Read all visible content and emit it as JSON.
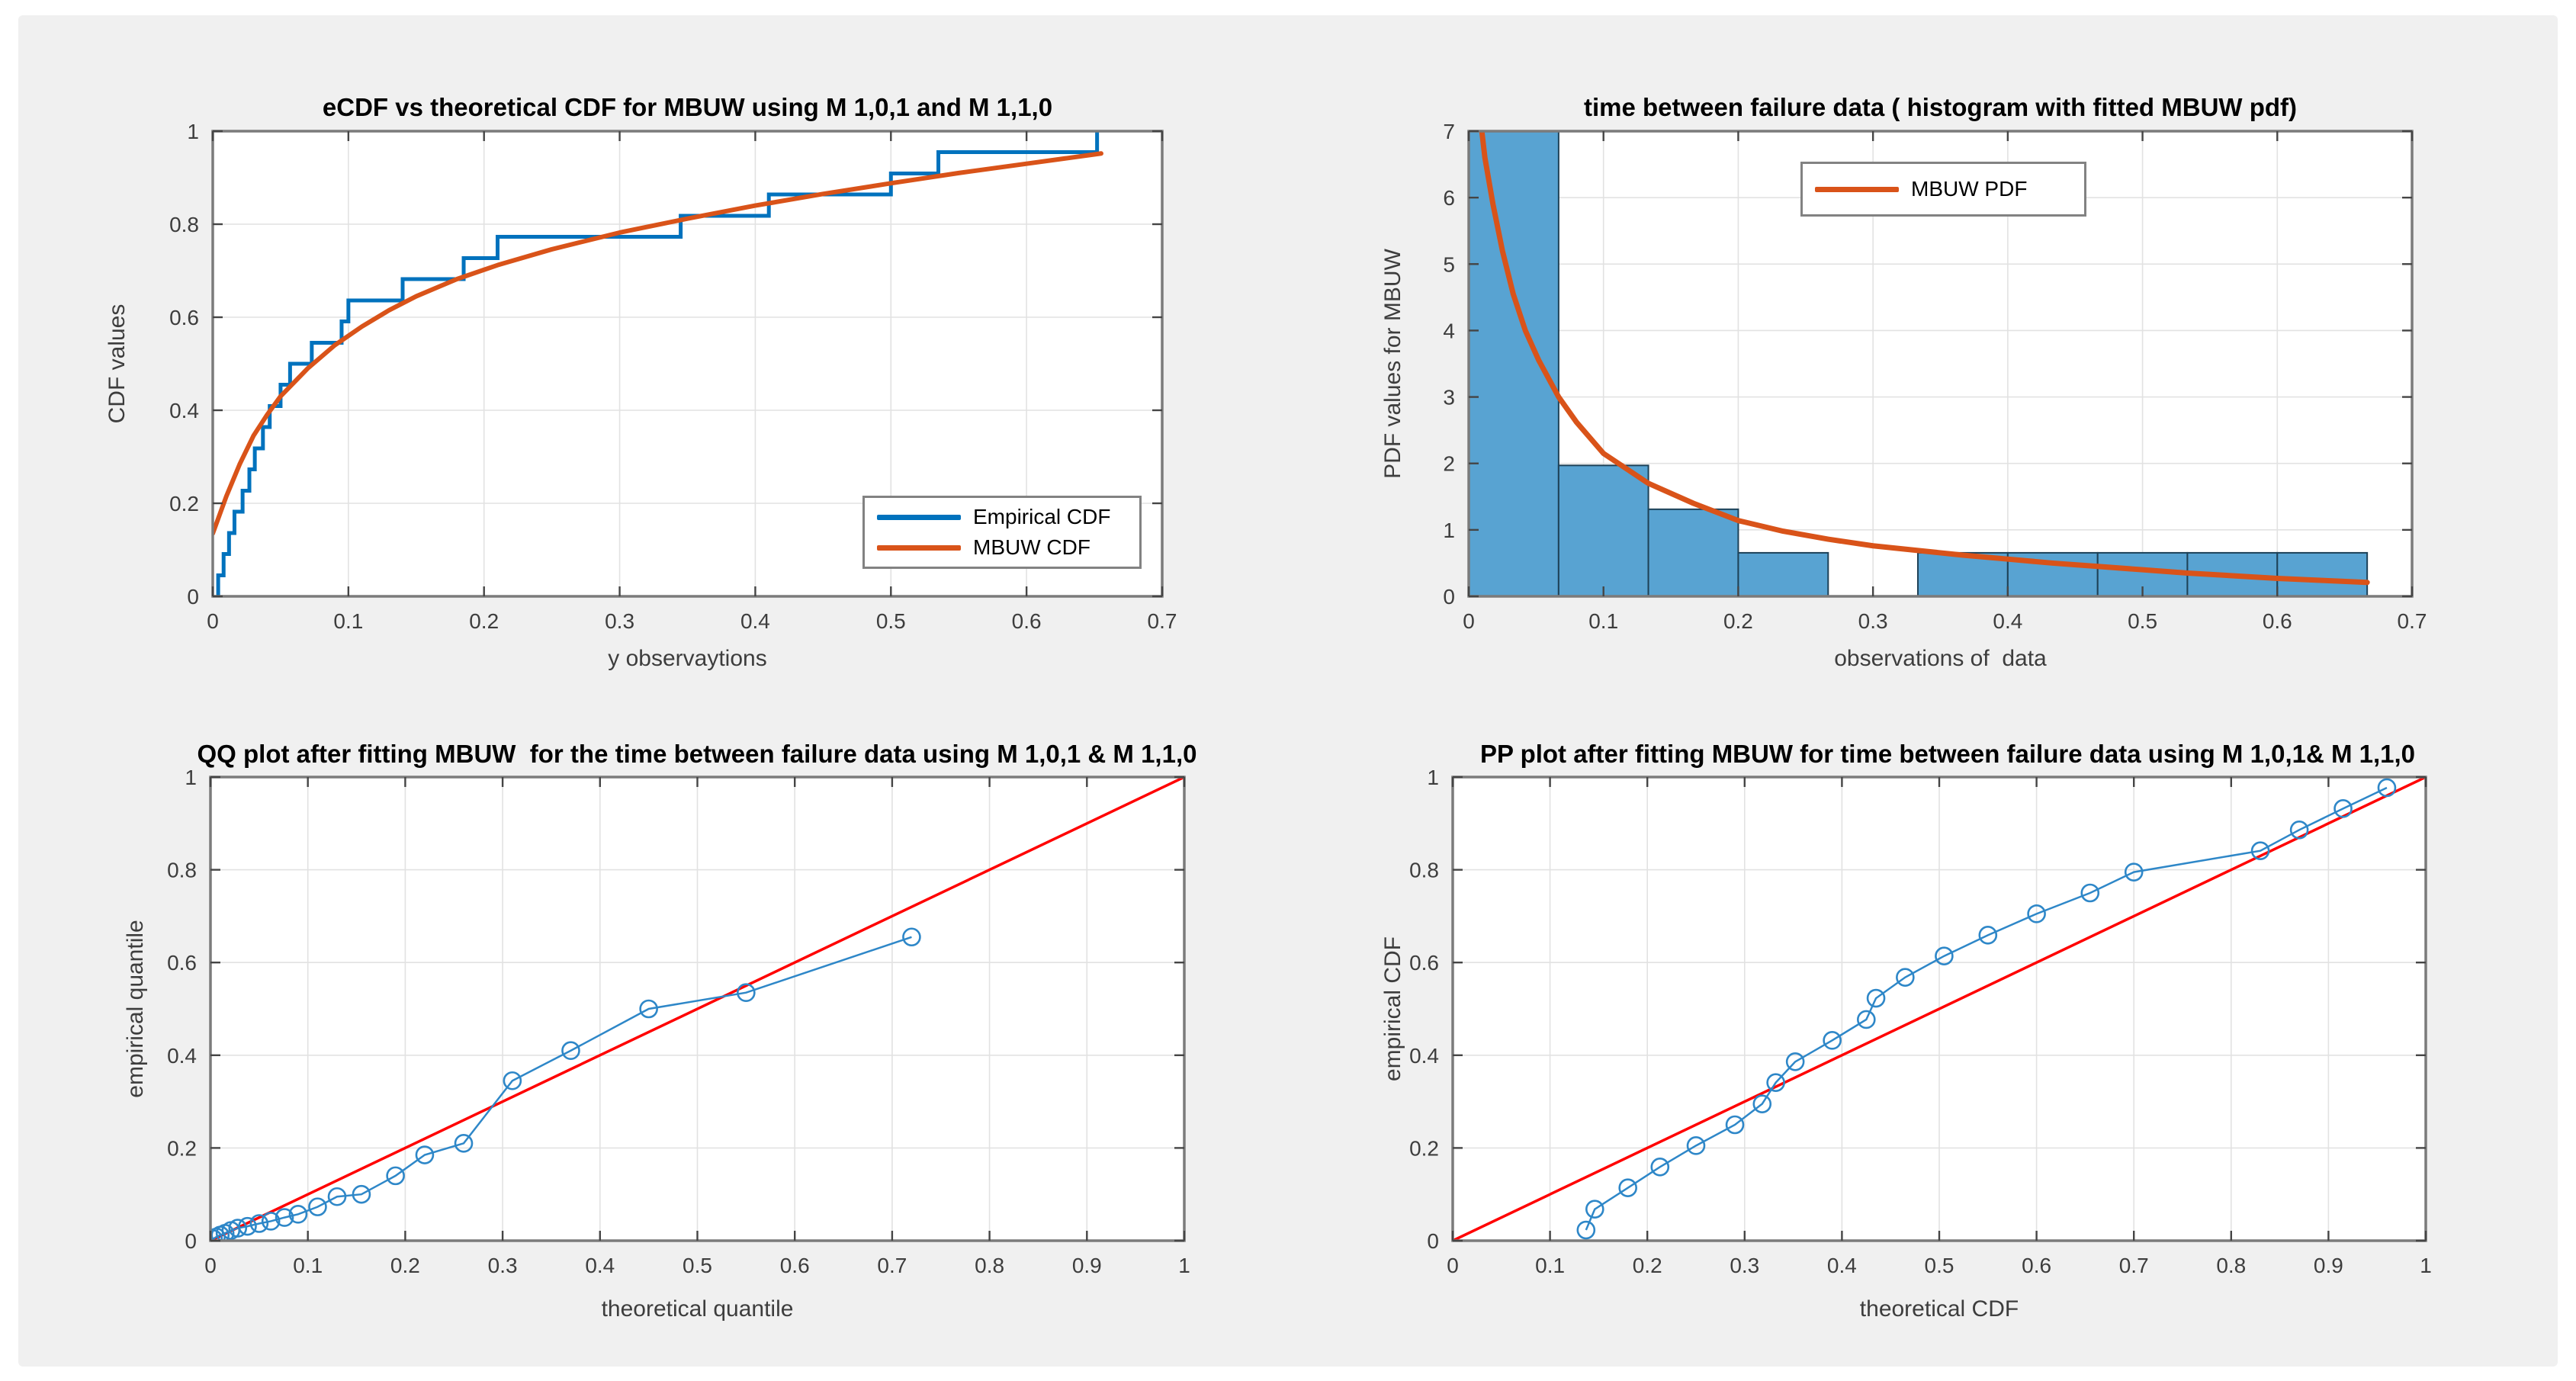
{
  "window": {
    "background": "#F0F0F0",
    "page_background": "#FFFFFF"
  },
  "colors": {
    "matlab_blue": "#0072BD",
    "matlab_orange": "#D95319",
    "reference_red": "#FF0000",
    "hist_fill": "#58A3D2",
    "hist_edge": "#1E4258",
    "scatter_blue": "#2E87C8",
    "grid": "#E2E2E2",
    "frame": "#7B7B7B",
    "tick": "#454545",
    "tick_text": "#3d3d3d"
  },
  "chart_data": [
    {
      "type": "line",
      "title": "eCDF vs theoretical CDF for MBUW using M 1,0,1 and M 1,1,0",
      "xlabel": "y observaytions",
      "ylabel": "CDF values",
      "xlim": [
        0,
        0.7
      ],
      "ylim": [
        0,
        1
      ],
      "grid": true,
      "xtick_vals": [
        0,
        0.1,
        0.2,
        0.3,
        0.4,
        0.5,
        0.6,
        0.7
      ],
      "xticks": [
        "0",
        "0.1",
        "0.2",
        "0.3",
        "0.4",
        "0.5",
        "0.6",
        "0.7"
      ],
      "ytick_vals": [
        0,
        0.2,
        0.4,
        0.6,
        0.8,
        1
      ],
      "yticks": [
        "0",
        "0.2",
        "0.4",
        "0.6",
        "0.8",
        "1"
      ],
      "legend": {
        "position": "lower right",
        "items": [
          {
            "label": "Empirical CDF",
            "color": "#0072BD"
          },
          {
            "label": "MBUW CDF",
            "color": "#D95319"
          }
        ]
      },
      "series": [
        {
          "name": "Empirical CDF",
          "type": "stairs",
          "color": "#0072BD",
          "width": 5,
          "x": [
            0.004,
            0.008,
            0.012,
            0.016,
            0.022,
            0.027,
            0.031,
            0.037,
            0.042,
            0.05,
            0.057,
            0.073,
            0.095,
            0.1,
            0.14,
            0.185,
            0.21,
            0.345,
            0.41,
            0.5,
            0.535,
            0.652
          ],
          "y": [
            0.045,
            0.091,
            0.136,
            0.182,
            0.227,
            0.273,
            0.318,
            0.364,
            0.409,
            0.455,
            0.5,
            0.545,
            0.591,
            0.636,
            0.682,
            0.727,
            0.773,
            0.818,
            0.864,
            0.909,
            0.955,
            1.0
          ]
        },
        {
          "name": "MBUW CDF",
          "type": "line",
          "color": "#D95319",
          "width": 6,
          "points": [
            [
              0,
              0.135
            ],
            [
              0.005,
              0.175
            ],
            [
              0.01,
              0.215
            ],
            [
              0.02,
              0.285
            ],
            [
              0.03,
              0.345
            ],
            [
              0.04,
              0.39
            ],
            [
              0.05,
              0.43
            ],
            [
              0.07,
              0.49
            ],
            [
              0.09,
              0.54
            ],
            [
              0.11,
              0.58
            ],
            [
              0.13,
              0.615
            ],
            [
              0.15,
              0.645
            ],
            [
              0.18,
              0.682
            ],
            [
              0.21,
              0.712
            ],
            [
              0.25,
              0.746
            ],
            [
              0.3,
              0.782
            ],
            [
              0.35,
              0.812
            ],
            [
              0.4,
              0.84
            ],
            [
              0.45,
              0.865
            ],
            [
              0.5,
              0.888
            ],
            [
              0.55,
              0.91
            ],
            [
              0.6,
              0.93
            ],
            [
              0.655,
              0.952
            ]
          ]
        }
      ]
    },
    {
      "type": "bar",
      "title": "time between failure data ( histogram with fitted MBUW pdf)",
      "xlabel": "observations of  data",
      "ylabel": "PDF values for MBUW",
      "xlim": [
        0,
        0.7
      ],
      "ylim": [
        0,
        7
      ],
      "grid": true,
      "xtick_vals": [
        0,
        0.1,
        0.2,
        0.3,
        0.4,
        0.5,
        0.6,
        0.7
      ],
      "xticks": [
        "0",
        "0.1",
        "0.2",
        "0.3",
        "0.4",
        "0.5",
        "0.6",
        "0.7"
      ],
      "ytick_vals": [
        0,
        1,
        2,
        3,
        4,
        5,
        6,
        7
      ],
      "yticks": [
        "0",
        "1",
        "2",
        "3",
        "4",
        "5",
        "6",
        "7"
      ],
      "legend": {
        "position": "upper center",
        "items": [
          {
            "label": "MBUW PDF",
            "color": "#D95319"
          }
        ]
      },
      "series": [
        {
          "name": "histogram of time between failure data",
          "type": "bars",
          "fill": "#58A3D2",
          "edge": "#1E4258",
          "bin_edges": [
            0,
            0.0667,
            0.1333,
            0.2,
            0.2667,
            0.3333,
            0.4,
            0.4667,
            0.5333,
            0.6,
            0.6667
          ],
          "heights": [
            7.0,
            1.97,
            1.31,
            0.655,
            0,
            0.655,
            0.655,
            0.655,
            0.655,
            0.655
          ]
        },
        {
          "name": "MBUW PDF",
          "type": "line",
          "color": "#D95319",
          "width": 7,
          "points": [
            [
              0.005,
              8.2
            ],
            [
              0.008,
              7.3
            ],
            [
              0.012,
              6.6
            ],
            [
              0.018,
              5.9
            ],
            [
              0.025,
              5.2
            ],
            [
              0.033,
              4.55
            ],
            [
              0.042,
              4.0
            ],
            [
              0.052,
              3.55
            ],
            [
              0.0667,
              3.0
            ],
            [
              0.08,
              2.62
            ],
            [
              0.1,
              2.15
            ],
            [
              0.1333,
              1.7
            ],
            [
              0.1667,
              1.4
            ],
            [
              0.2,
              1.14
            ],
            [
              0.2333,
              0.98
            ],
            [
              0.2667,
              0.86
            ],
            [
              0.3,
              0.76
            ],
            [
              0.3333,
              0.69
            ],
            [
              0.3667,
              0.62
            ],
            [
              0.4,
              0.56
            ],
            [
              0.4333,
              0.5
            ],
            [
              0.4667,
              0.45
            ],
            [
              0.5,
              0.4
            ],
            [
              0.5333,
              0.35
            ],
            [
              0.5667,
              0.31
            ],
            [
              0.6,
              0.27
            ],
            [
              0.6333,
              0.24
            ],
            [
              0.6667,
              0.21
            ]
          ]
        }
      ]
    },
    {
      "type": "scatter",
      "title": "QQ plot after fitting MBUW  for the time between failure data using M 1,0,1 & M 1,1,0",
      "xlabel": "theoretical quantile",
      "ylabel": "empirical quantile",
      "xlim": [
        0,
        1
      ],
      "ylim": [
        0,
        1
      ],
      "grid": true,
      "xtick_vals": [
        0,
        0.1,
        0.2,
        0.3,
        0.4,
        0.5,
        0.6,
        0.7,
        0.8,
        0.9,
        1
      ],
      "xticks": [
        "0",
        "0.1",
        "0.2",
        "0.3",
        "0.4",
        "0.5",
        "0.6",
        "0.7",
        "0.8",
        "0.9",
        "1"
      ],
      "ytick_vals": [
        0,
        0.2,
        0.4,
        0.6,
        0.8,
        1
      ],
      "yticks": [
        "0",
        "0.2",
        "0.4",
        "0.6",
        "0.8",
        "1"
      ],
      "legend": null,
      "series": [
        {
          "name": "45-degree reference line",
          "type": "line",
          "color": "#FF0000",
          "width": 3.5,
          "points": [
            [
              0,
              0
            ],
            [
              1,
              1
            ]
          ]
        },
        {
          "name": "QQ points",
          "type": "scatterline",
          "color": "#2E87C8",
          "width": 2.5,
          "marker_r": 11,
          "x": [
            0.003,
            0.006,
            0.01,
            0.015,
            0.021,
            0.028,
            0.038,
            0.05,
            0.062,
            0.076,
            0.09,
            0.11,
            0.13,
            0.155,
            0.19,
            0.22,
            0.26,
            0.31,
            0.37,
            0.45,
            0.55,
            0.72
          ],
          "y": [
            0.004,
            0.008,
            0.012,
            0.016,
            0.022,
            0.027,
            0.031,
            0.037,
            0.042,
            0.05,
            0.057,
            0.073,
            0.095,
            0.1,
            0.14,
            0.185,
            0.21,
            0.345,
            0.41,
            0.5,
            0.535,
            0.655
          ]
        }
      ]
    },
    {
      "type": "scatter",
      "title": "PP plot after fitting MBUW for time between failure data using M 1,0,1& M 1,1,0",
      "xlabel": "theoretical CDF",
      "ylabel": "empirical CDF",
      "xlim": [
        0,
        1
      ],
      "ylim": [
        0,
        1
      ],
      "grid": true,
      "xtick_vals": [
        0,
        0.1,
        0.2,
        0.3,
        0.4,
        0.5,
        0.6,
        0.7,
        0.8,
        0.9,
        1
      ],
      "xticks": [
        "0",
        "0.1",
        "0.2",
        "0.3",
        "0.4",
        "0.5",
        "0.6",
        "0.7",
        "0.8",
        "0.9",
        "1"
      ],
      "ytick_vals": [
        0,
        0.2,
        0.4,
        0.6,
        0.8,
        1
      ],
      "yticks": [
        "0",
        "0.2",
        "0.4",
        "0.6",
        "0.8",
        "1"
      ],
      "legend": null,
      "series": [
        {
          "name": "45-degree reference line",
          "type": "line",
          "color": "#FF0000",
          "width": 3.5,
          "points": [
            [
              0,
              0
            ],
            [
              1,
              1
            ]
          ]
        },
        {
          "name": "PP points",
          "type": "scatterline",
          "color": "#2E87C8",
          "width": 2.5,
          "marker_r": 11,
          "x": [
            0.137,
            0.146,
            0.18,
            0.213,
            0.25,
            0.29,
            0.318,
            0.332,
            0.352,
            0.39,
            0.425,
            0.435,
            0.465,
            0.505,
            0.55,
            0.6,
            0.655,
            0.7,
            0.83,
            0.87,
            0.915,
            0.96
          ],
          "y": [
            0.023,
            0.068,
            0.114,
            0.159,
            0.205,
            0.25,
            0.295,
            0.341,
            0.386,
            0.432,
            0.477,
            0.523,
            0.568,
            0.614,
            0.659,
            0.705,
            0.75,
            0.795,
            0.841,
            0.886,
            0.932,
            0.977
          ]
        }
      ]
    }
  ]
}
